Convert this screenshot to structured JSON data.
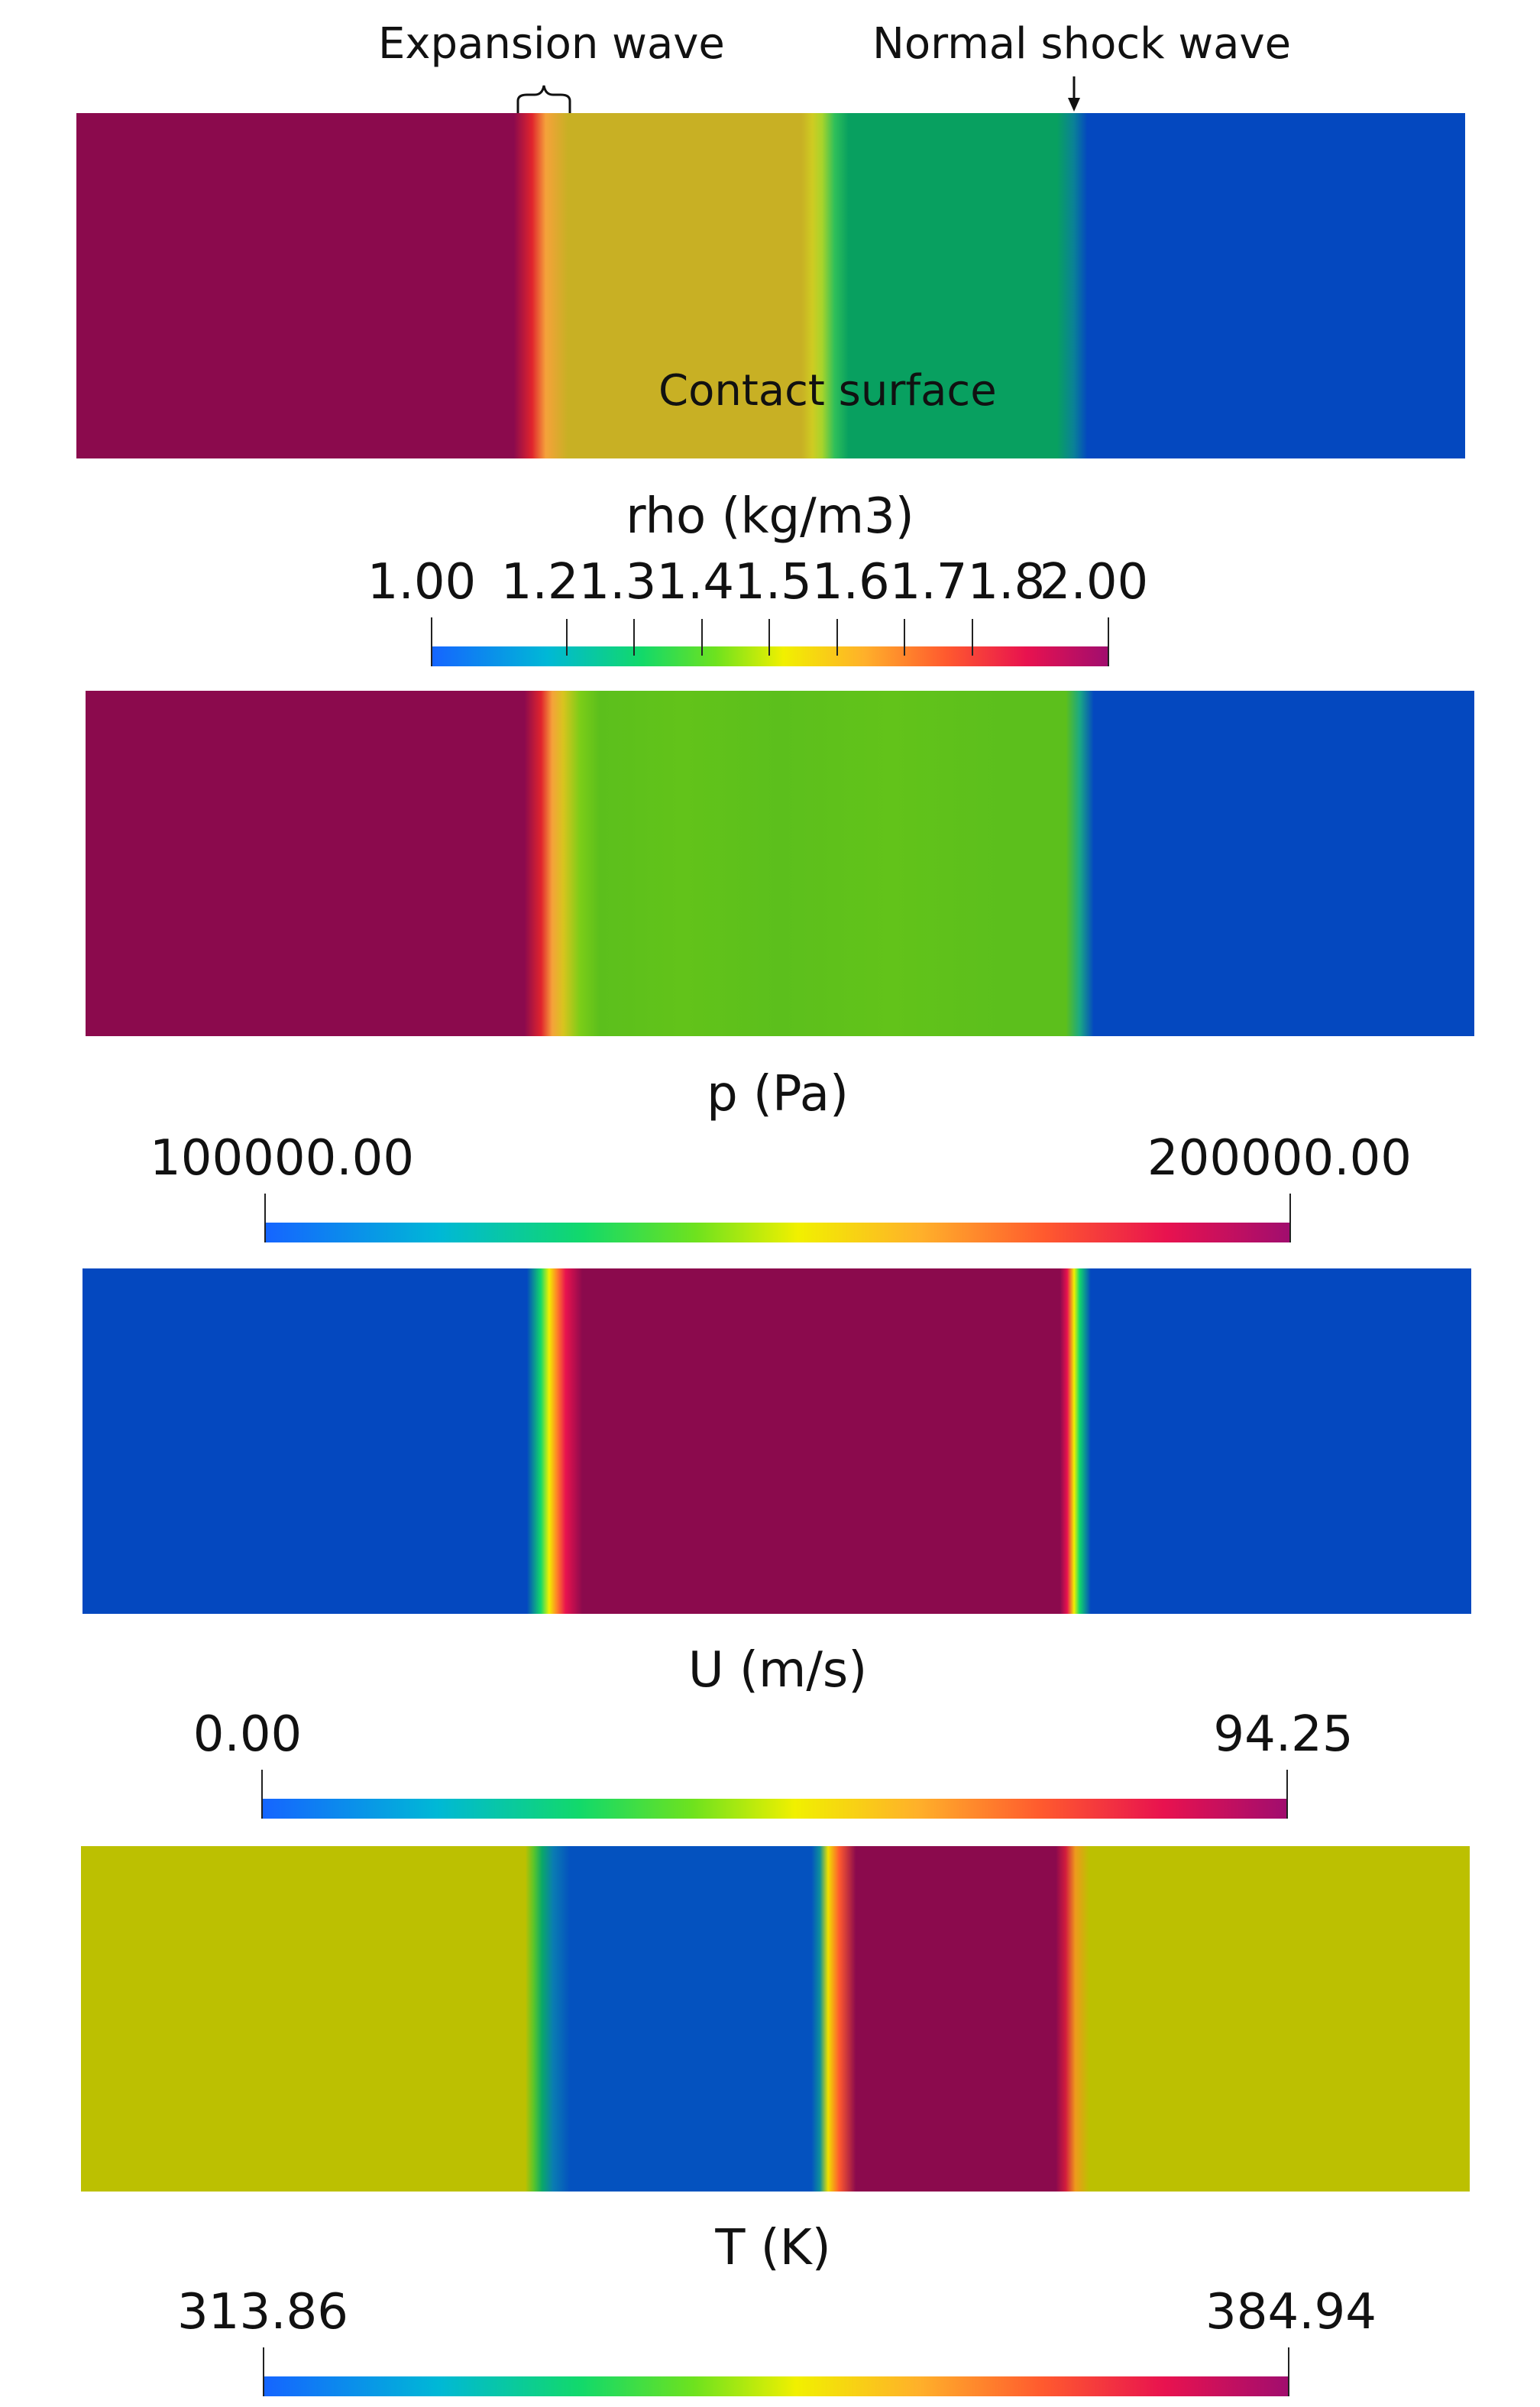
{
  "annotations": {
    "expansion_wave": "Expansion wave",
    "normal_shock_wave": "Normal shock wave",
    "contact_surface": "Contact surface"
  },
  "panels": [
    {
      "field": "rho",
      "colorbar_title": "rho (kg/m3)",
      "tick_labels": [
        "1.00",
        "1.21.31.41.51.61.71.8",
        "2.00"
      ],
      "colors": {
        "left": "#8b0a4d",
        "expansion": "#c8b024",
        "mid": "#08a060",
        "right": "#0448bf"
      }
    },
    {
      "field": "p",
      "colorbar_title": "p (Pa)",
      "tick_labels": [
        "100000.00",
        "200000.00"
      ],
      "colors": {
        "left": "#8b0a4d",
        "mid": "#5cbf1c",
        "right": "#0448bf"
      }
    },
    {
      "field": "U",
      "colorbar_title": "U  (m/s)",
      "tick_labels": [
        "0.00",
        "94.25"
      ],
      "colors": {
        "left": "#0448bf",
        "mid": "#8b0a4d",
        "right": "#0448bf"
      }
    },
    {
      "field": "T",
      "colorbar_title": "T (K)",
      "tick_labels": [
        "313.86",
        "384.94"
      ],
      "colors": {
        "left": "#bcc001",
        "low": "#0452bf",
        "high": "#8b0a4d",
        "right": "#bcc001"
      }
    }
  ],
  "colormap": [
    "#1565ff",
    "#00b8d6",
    "#12d96a",
    "#6ee21e",
    "#f1f000",
    "#ffb02a",
    "#ff5a2e",
    "#e8124f",
    "#a10d6e"
  ]
}
